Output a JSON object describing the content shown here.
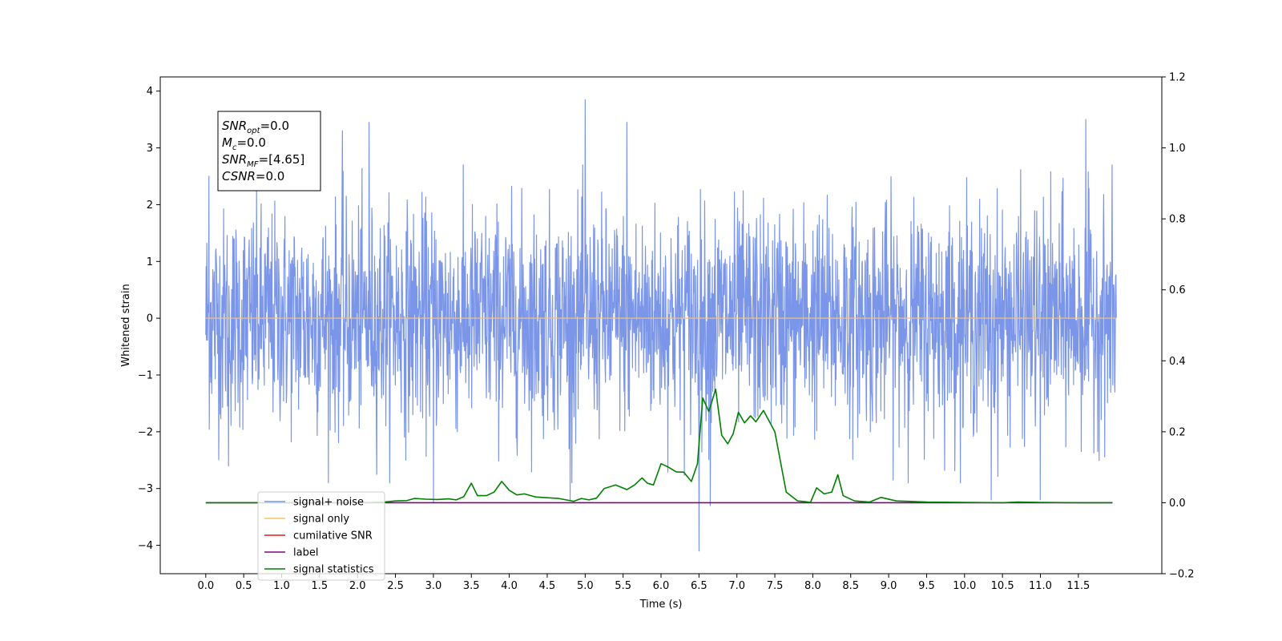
{
  "chart_data": {
    "type": "line",
    "xlabel": "Time (s)",
    "ylabel": "Whitened strain",
    "xlim": [
      -0.6,
      12.6
    ],
    "ylim": [
      -4.5,
      4.25
    ],
    "y2lim": [
      -0.2,
      1.2
    ],
    "x_ticks": [
      "0.0",
      "0.5",
      "1.0",
      "1.5",
      "2.0",
      "2.5",
      "3.0",
      "3.5",
      "4.0",
      "4.5",
      "5.0",
      "5.5",
      "6.0",
      "6.5",
      "7.0",
      "7.5",
      "8.0",
      "8.5",
      "9.0",
      "9.5",
      "10.0",
      "10.5",
      "11.0",
      "11.5"
    ],
    "y_ticks": [
      "4",
      "3",
      "2",
      "1",
      "0",
      "−1",
      "−2",
      "−3",
      "−4"
    ],
    "y2_ticks": [
      "1.2",
      "1.0",
      "0.8",
      "0.6",
      "0.4",
      "0.2",
      "0.0",
      "−0.2"
    ],
    "legend_position": "lower-left",
    "annotation": {
      "lines": [
        {
          "main": "SNR",
          "sub": "opt",
          "rest": "=0.0"
        },
        {
          "main": "M",
          "sub": "c",
          "rest": "=0.0"
        },
        {
          "main": "SNR",
          "sub": "MF",
          "rest": "=[4.65]"
        },
        {
          "main": "CSNR",
          "sub": "",
          "rest": "=0.0"
        }
      ]
    },
    "series": [
      {
        "name": "signal+ noise",
        "color": "#7b96e8",
        "axis": "left",
        "description_envelope": true,
        "x_range": [
          0.0,
          12.0
        ],
        "envelope_peaks": [
          [
            0.04,
            2.5
          ],
          [
            0.3,
            -2.6
          ],
          [
            1.8,
            3.3
          ],
          [
            2.15,
            3.45
          ],
          [
            3.0,
            -3.25
          ],
          [
            5.0,
            3.85
          ],
          [
            4.8,
            -3.2
          ],
          [
            5.55,
            3.45
          ],
          [
            6.5,
            -4.1
          ],
          [
            6.65,
            -3.3
          ],
          [
            10.35,
            -3.2
          ],
          [
            11.0,
            -3.2
          ],
          [
            11.6,
            3.5
          ]
        ]
      },
      {
        "name": "signal only",
        "color": "#ffbf5f",
        "axis": "left",
        "x": [
          0.0,
          12.0
        ],
        "values": [
          0.0,
          0.0
        ]
      },
      {
        "name": "cumilative SNR",
        "color": "#e41a1c",
        "axis": "right",
        "x": [],
        "values": []
      },
      {
        "name": "label",
        "color": "#7a0a7a",
        "axis": "right",
        "x": [
          0.0,
          11.95
        ],
        "values": [
          0.0,
          0.0
        ]
      },
      {
        "name": "signal statistics",
        "color": "#008000",
        "axis": "right",
        "x": [
          0.0,
          0.5,
          1.0,
          1.5,
          2.0,
          2.2,
          2.35,
          2.5,
          2.65,
          2.75,
          2.9,
          3.05,
          3.2,
          3.3,
          3.4,
          3.5,
          3.58,
          3.7,
          3.8,
          3.9,
          4.0,
          4.1,
          4.2,
          4.35,
          4.5,
          4.65,
          4.75,
          4.85,
          4.95,
          5.05,
          5.15,
          5.25,
          5.4,
          5.55,
          5.65,
          5.75,
          5.82,
          5.9,
          6.0,
          6.1,
          6.2,
          6.3,
          6.4,
          6.48,
          6.55,
          6.63,
          6.72,
          6.8,
          6.88,
          6.95,
          7.02,
          7.1,
          7.18,
          7.25,
          7.35,
          7.5,
          7.65,
          7.8,
          7.9,
          7.97,
          8.05,
          8.15,
          8.25,
          8.33,
          8.4,
          8.55,
          8.75,
          8.9,
          9.1,
          9.5,
          10.0,
          10.5,
          10.7,
          11.0,
          11.5,
          11.95
        ],
        "values": [
          0.0,
          0.0,
          0.0,
          0.0,
          0.0,
          0.001,
          0.002,
          0.005,
          0.006,
          0.012,
          0.01,
          0.009,
          0.011,
          0.008,
          0.017,
          0.055,
          0.02,
          0.02,
          0.03,
          0.06,
          0.035,
          0.022,
          0.025,
          0.016,
          0.014,
          0.012,
          0.008,
          0.004,
          0.012,
          0.008,
          0.013,
          0.04,
          0.05,
          0.037,
          0.05,
          0.07,
          0.055,
          0.05,
          0.11,
          0.1,
          0.087,
          0.086,
          0.06,
          0.11,
          0.295,
          0.257,
          0.32,
          0.19,
          0.166,
          0.194,
          0.255,
          0.225,
          0.245,
          0.228,
          0.26,
          0.2,
          0.03,
          0.005,
          0.003,
          0.001,
          0.042,
          0.025,
          0.03,
          0.079,
          0.02,
          0.005,
          0.002,
          0.015,
          0.005,
          0.002,
          0.001,
          0.0,
          0.002,
          0.001,
          0.0,
          0.0
        ]
      }
    ]
  }
}
